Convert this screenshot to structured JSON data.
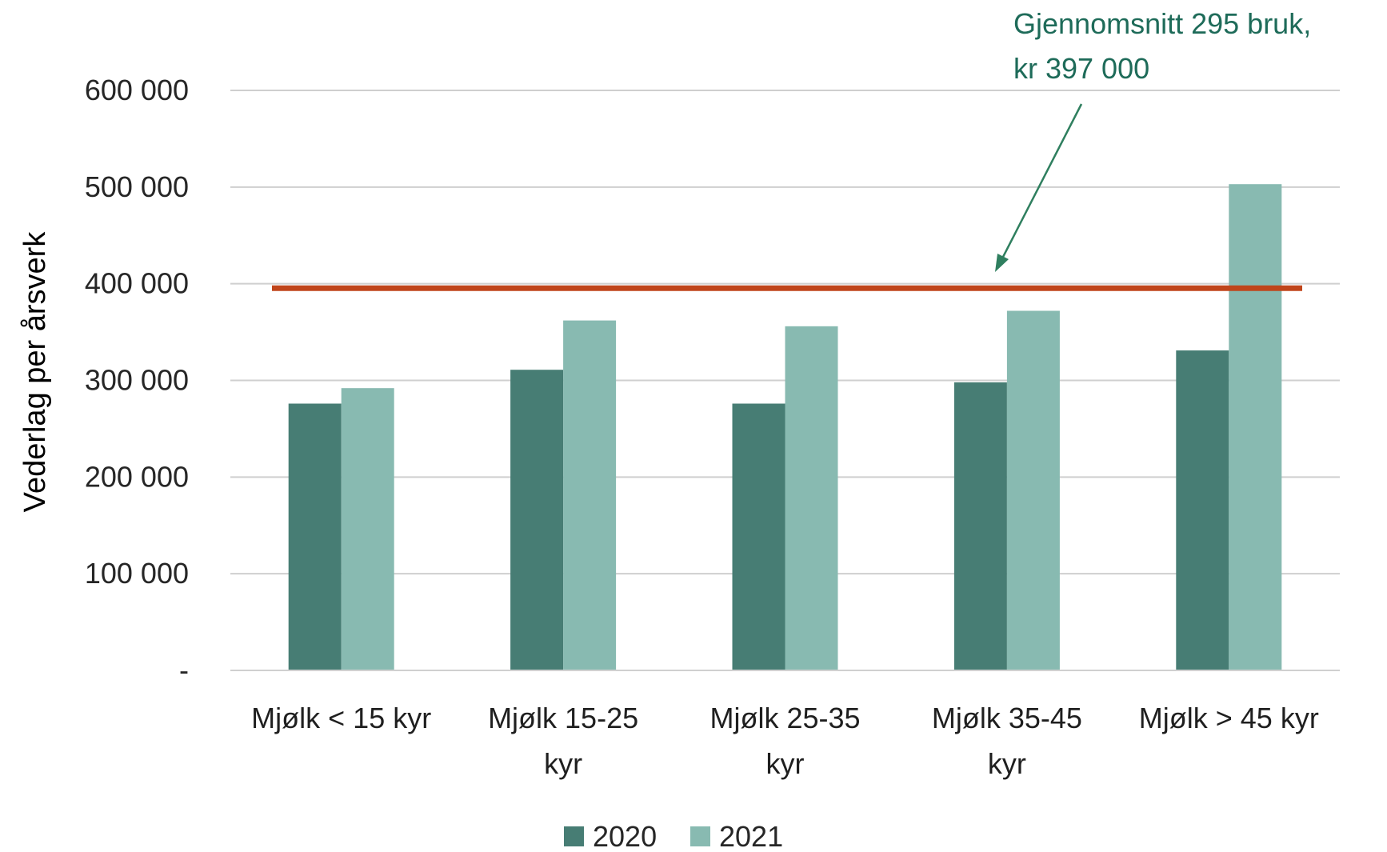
{
  "chart_data": {
    "type": "bar",
    "title": "",
    "xlabel": "",
    "ylabel": "Vederlag per årsverk",
    "ylim": [
      0,
      600000
    ],
    "yticks": [
      0,
      100000,
      200000,
      300000,
      400000,
      500000,
      600000
    ],
    "ytick_labels": [
      "-",
      "100 000",
      "200 000",
      "300 000",
      "400 000",
      "500 000",
      "600 000"
    ],
    "grid": true,
    "categories": [
      [
        "Mjølk < 15 kyr"
      ],
      [
        "Mjølk 15-25",
        "kyr"
      ],
      [
        "Mjølk 25-35",
        "kyr"
      ],
      [
        "Mjølk 35-45",
        "kyr"
      ],
      [
        "Mjølk > 45 kyr"
      ]
    ],
    "series": [
      {
        "name": "2020",
        "color": "#477d74",
        "values": [
          276000,
          311000,
          276000,
          298000,
          331000
        ]
      },
      {
        "name": "2021",
        "color": "#88bab1",
        "values": [
          292000,
          362000,
          356000,
          372000,
          503000
        ]
      }
    ],
    "reference_line": {
      "value": 397000,
      "color": "#c0451b"
    },
    "annotation": {
      "lines": [
        "Gjennomsnitt 295 bruk,",
        "kr 397 000"
      ],
      "color": "#1e6b59",
      "arrow_color": "#2f7f5f"
    },
    "legend": {
      "placement": "bottom",
      "items": [
        "2020",
        "2021"
      ]
    }
  }
}
